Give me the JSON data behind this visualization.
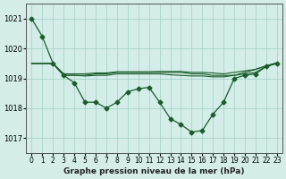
{
  "background_color": "#d4ede8",
  "grid_color": "#a8d4cc",
  "line_color": "#1a5c2a",
  "title": "Graphe pression niveau de la mer (hPa)",
  "xlabel_hours": [
    0,
    1,
    2,
    3,
    4,
    5,
    6,
    7,
    8,
    9,
    10,
    11,
    12,
    13,
    14,
    15,
    16,
    17,
    18,
    19,
    20,
    21,
    22,
    23
  ],
  "ylim": [
    1016.5,
    1021.5
  ],
  "yticks": [
    1017,
    1018,
    1019,
    1020,
    1021
  ],
  "main_line": [
    1021.0,
    1020.4,
    1019.5,
    1019.1,
    1018.85,
    1018.2,
    1018.2,
    1018.0,
    1018.2,
    1018.55,
    1018.65,
    1018.7,
    1018.2,
    1017.65,
    1017.45,
    1017.2,
    1017.25,
    1017.8,
    1018.2,
    1019.0,
    1019.1,
    1019.15,
    1019.4,
    1019.5
  ],
  "smooth_line1": [
    1019.5,
    1019.5,
    1019.5,
    1019.1,
    1019.1,
    1019.1,
    1019.15,
    1019.15,
    1019.2,
    1019.2,
    1019.2,
    1019.2,
    1019.2,
    1019.2,
    1019.2,
    1019.15,
    1019.15,
    1019.1,
    1019.1,
    1019.1,
    1019.15,
    1019.2,
    1019.4,
    1019.5
  ],
  "smooth_line2": [
    1019.5,
    1019.5,
    1019.5,
    1019.15,
    1019.15,
    1019.15,
    1019.18,
    1019.18,
    1019.22,
    1019.22,
    1019.22,
    1019.22,
    1019.23,
    1019.23,
    1019.23,
    1019.2,
    1019.2,
    1019.18,
    1019.15,
    1019.2,
    1019.25,
    1019.3,
    1019.42,
    1019.52
  ],
  "smooth_line3": [
    1019.5,
    1019.5,
    1019.5,
    1019.1,
    1019.1,
    1019.08,
    1019.1,
    1019.1,
    1019.15,
    1019.15,
    1019.15,
    1019.15,
    1019.15,
    1019.12,
    1019.1,
    1019.08,
    1019.08,
    1019.05,
    1019.05,
    1019.1,
    1019.2,
    1019.3,
    1019.42,
    1019.52
  ]
}
